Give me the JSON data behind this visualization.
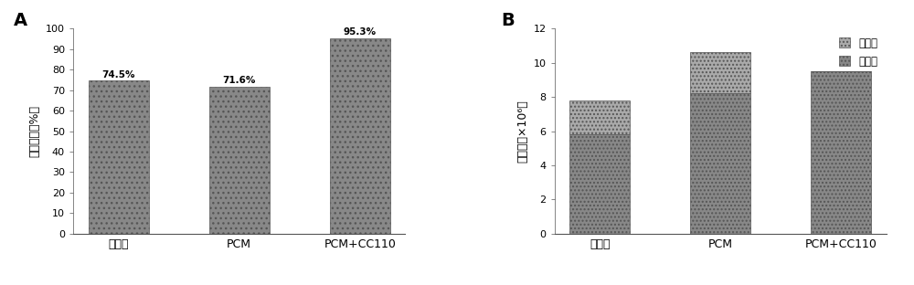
{
  "panel_A": {
    "label": "A",
    "categories": [
      "对照组",
      "PCM",
      "PCM+CC110"
    ],
    "values": [
      74.5,
      71.6,
      95.3
    ],
    "labels": [
      "74.5%",
      "71.6%",
      "95.3%"
    ],
    "ylabel": "细胞活力（%）",
    "ylim": [
      0,
      100
    ],
    "yticks": [
      0,
      10,
      20,
      30,
      40,
      50,
      60,
      70,
      80,
      90,
      100
    ],
    "bar_color": "#888888",
    "bar_edgecolor": "#555555",
    "bar_width": 0.5
  },
  "panel_B": {
    "label": "B",
    "categories": [
      "对照组",
      "PCM",
      "PCM+CC110"
    ],
    "live_values": [
      5.8,
      8.2,
      9.5
    ],
    "dead_values": [
      2.0,
      2.4,
      0.0
    ],
    "ylabel": "细胞数（×10⁶）",
    "ylim": [
      0,
      12
    ],
    "yticks": [
      0,
      2,
      4,
      6,
      8,
      10,
      12
    ],
    "live_color": "#888888",
    "dead_color": "#aaaaaa",
    "bar_width": 0.5,
    "legend_labels": [
      "死细胞",
      "活细胞"
    ]
  },
  "background_color": "#ffffff",
  "font_size": 9,
  "label_font_size": 14,
  "annotation_fontsize": 7.5
}
